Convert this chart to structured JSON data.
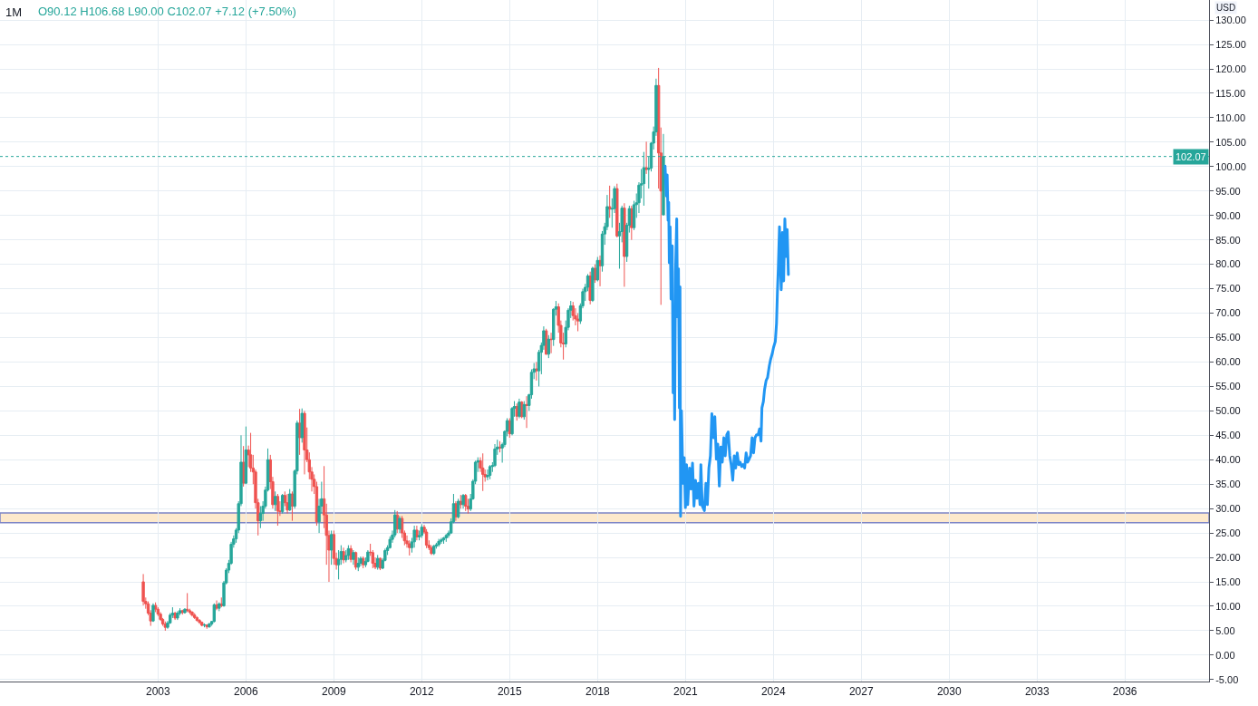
{
  "chart_data": {
    "type": "candlestick",
    "title": "1M",
    "ylabel": "USD",
    "annotations": [
      "O90.12 H106.68 L90.00 C102.07 +7.12 (+7.50%)"
    ],
    "series": [
      {
        "x": [
          "2002-07",
          "2002-08",
          "2002-09",
          "2002-10",
          "2002-11",
          "2002-12",
          "2003-01",
          "2003-02",
          "2003-03",
          "2003-04",
          "2003-05",
          "2003-06",
          "2003-07",
          "2003-08",
          "2003-09",
          "2003-10",
          "2003-11",
          "2003-12",
          "2004-01",
          "2004-02",
          "2004-03",
          "2004-04",
          "2004-05",
          "2004-06",
          "2004-07",
          "2004-08",
          "2004-09",
          "2004-10",
          "2004-11",
          "2004-12",
          "2005-01",
          "2005-02",
          "2005-03",
          "2005-04",
          "2005-05",
          "2005-06",
          "2005-07",
          "2005-08",
          "2005-09",
          "2005-10",
          "2005-11",
          "2005-12",
          "2006-01",
          "2006-02",
          "2006-03",
          "2006-04",
          "2006-05",
          "2006-06",
          "2006-07",
          "2006-08",
          "2006-09",
          "2006-10",
          "2006-11",
          "2006-12",
          "2007-01",
          "2007-02",
          "2007-03",
          "2007-04",
          "2007-05",
          "2007-06",
          "2007-07",
          "2007-08",
          "2007-09",
          "2007-10",
          "2007-11",
          "2007-12",
          "2008-01",
          "2008-02",
          "2008-03",
          "2008-04",
          "2008-05",
          "2008-06",
          "2008-07",
          "2008-08",
          "2008-09",
          "2008-10",
          "2008-11",
          "2008-12",
          "2009-01",
          "2009-02",
          "2009-03",
          "2009-04",
          "2009-05",
          "2009-06",
          "2009-07",
          "2009-08",
          "2009-09",
          "2009-10",
          "2009-11",
          "2009-12",
          "2010-01",
          "2010-02",
          "2010-03",
          "2010-04",
          "2010-05",
          "2010-06",
          "2010-07",
          "2010-08",
          "2010-09",
          "2010-10",
          "2010-11",
          "2010-12",
          "2011-01",
          "2011-02",
          "2011-03",
          "2011-04",
          "2011-05",
          "2011-06",
          "2011-07",
          "2011-08",
          "2011-09",
          "2011-10",
          "2011-11",
          "2011-12",
          "2012-01",
          "2012-02",
          "2012-03",
          "2012-04",
          "2012-05",
          "2012-06",
          "2012-07",
          "2012-08",
          "2012-09",
          "2012-10",
          "2012-11",
          "2012-12",
          "2013-01",
          "2013-02",
          "2013-03",
          "2013-04",
          "2013-05",
          "2013-06",
          "2013-07",
          "2013-08",
          "2013-09",
          "2013-10",
          "2013-11",
          "2013-12",
          "2014-01",
          "2014-02",
          "2014-03",
          "2014-04",
          "2014-05",
          "2014-06",
          "2014-07",
          "2014-08",
          "2014-09",
          "2014-10",
          "2014-11",
          "2014-12",
          "2015-01",
          "2015-02",
          "2015-03",
          "2015-04",
          "2015-05",
          "2015-06",
          "2015-07",
          "2015-08",
          "2015-09",
          "2015-10",
          "2015-11",
          "2015-12",
          "2016-01",
          "2016-02",
          "2016-03",
          "2016-04",
          "2016-05",
          "2016-06",
          "2016-07",
          "2016-08",
          "2016-09",
          "2016-10",
          "2016-11",
          "2016-12",
          "2017-01",
          "2017-02",
          "2017-03",
          "2017-04",
          "2017-05",
          "2017-06",
          "2017-07",
          "2017-08",
          "2017-09",
          "2017-10",
          "2017-11",
          "2017-12",
          "2018-01",
          "2018-02",
          "2018-03",
          "2018-04",
          "2018-05",
          "2018-06",
          "2018-07",
          "2018-08",
          "2018-09",
          "2018-10",
          "2018-11",
          "2018-12",
          "2019-01",
          "2019-02",
          "2019-03",
          "2019-04",
          "2019-05",
          "2019-06",
          "2019-07",
          "2019-08",
          "2019-09",
          "2019-10",
          "2019-11",
          "2019-12",
          "2020-01",
          "2020-02",
          "2020-03",
          "2020-04"
        ],
        "ohlc": [
          [
            15.0,
            16.6,
            10.2,
            11.0
          ],
          [
            11.0,
            11.8,
            9.5,
            10.5
          ],
          [
            10.5,
            11.0,
            8.2,
            8.6
          ],
          [
            8.6,
            9.2,
            6.0,
            7.0
          ],
          [
            7.0,
            10.6,
            6.8,
            10.2
          ],
          [
            10.2,
            10.8,
            8.8,
            9.4
          ],
          [
            9.4,
            9.8,
            8.0,
            8.4
          ],
          [
            8.4,
            8.8,
            7.0,
            7.3
          ],
          [
            7.3,
            7.6,
            6.0,
            6.4
          ],
          [
            6.4,
            6.9,
            5.0,
            5.7
          ],
          [
            5.7,
            7.0,
            5.4,
            6.6
          ],
          [
            6.6,
            8.6,
            6.4,
            8.2
          ],
          [
            8.2,
            9.8,
            7.6,
            8.6
          ],
          [
            8.6,
            8.9,
            7.2,
            7.6
          ],
          [
            7.6,
            9.0,
            7.2,
            8.6
          ],
          [
            8.6,
            9.6,
            8.2,
            9.1
          ],
          [
            9.1,
            9.3,
            8.3,
            8.7
          ],
          [
            8.7,
            9.6,
            8.5,
            9.4
          ],
          [
            9.4,
            12.7,
            8.8,
            9.1
          ],
          [
            9.1,
            9.5,
            8.4,
            8.8
          ],
          [
            8.8,
            9.0,
            7.9,
            8.2
          ],
          [
            8.2,
            8.6,
            7.4,
            7.7
          ],
          [
            7.7,
            7.9,
            6.9,
            7.1
          ],
          [
            7.1,
            7.4,
            6.4,
            6.7
          ],
          [
            6.7,
            6.9,
            5.9,
            6.1
          ],
          [
            6.1,
            6.5,
            5.7,
            6.2
          ],
          [
            6.2,
            6.3,
            5.4,
            5.8
          ],
          [
            5.8,
            6.6,
            5.6,
            6.4
          ],
          [
            6.4,
            7.0,
            6.0,
            6.9
          ],
          [
            6.9,
            10.6,
            6.7,
            10.3
          ],
          [
            10.3,
            11.2,
            9.2,
            9.6
          ],
          [
            9.6,
            10.8,
            9.0,
            10.5
          ],
          [
            10.5,
            11.8,
            9.8,
            10.1
          ],
          [
            10.1,
            15.2,
            9.9,
            14.8
          ],
          [
            14.8,
            17.8,
            14.5,
            17.4
          ],
          [
            17.4,
            19.5,
            16.8,
            18.8
          ],
          [
            18.8,
            23.2,
            18.5,
            22.7
          ],
          [
            22.7,
            24.5,
            22.0,
            23.8
          ],
          [
            23.8,
            26.0,
            23.0,
            25.6
          ],
          [
            25.6,
            31.5,
            25.0,
            31.0
          ],
          [
            31.0,
            45.0,
            30.5,
            39.5
          ],
          [
            39.5,
            42.8,
            34.5,
            35.2
          ],
          [
            35.2,
            46.8,
            35.0,
            42.0
          ],
          [
            42.0,
            42.9,
            38.5,
            41.0
          ],
          [
            41.0,
            45.5,
            37.5,
            38.3
          ],
          [
            38.3,
            41.0,
            35.0,
            37.5
          ],
          [
            37.5,
            38.0,
            30.0,
            31.2
          ],
          [
            31.2,
            32.0,
            24.5,
            27.5
          ],
          [
            27.5,
            30.5,
            26.0,
            29.0
          ],
          [
            29.0,
            31.5,
            27.5,
            30.5
          ],
          [
            30.5,
            34.5,
            30.0,
            33.8
          ],
          [
            33.8,
            42.3,
            33.5,
            40.0
          ],
          [
            40.0,
            41.0,
            34.0,
            35.5
          ],
          [
            35.5,
            36.5,
            30.0,
            30.8
          ],
          [
            30.8,
            33.5,
            29.5,
            32.5
          ],
          [
            32.5,
            33.0,
            26.5,
            29.5
          ],
          [
            29.5,
            31.5,
            28.5,
            29.4
          ],
          [
            29.4,
            33.0,
            29.0,
            32.7
          ],
          [
            32.7,
            33.5,
            30.5,
            31.2
          ],
          [
            31.2,
            33.0,
            29.0,
            29.7
          ],
          [
            29.7,
            34.0,
            29.5,
            33.0
          ],
          [
            33.0,
            33.5,
            27.5,
            30.5
          ],
          [
            30.5,
            38.0,
            30.0,
            37.7
          ],
          [
            37.7,
            48.0,
            37.0,
            47.5
          ],
          [
            47.5,
            50.4,
            41.0,
            44.5
          ],
          [
            44.5,
            50.5,
            43.5,
            49.5
          ],
          [
            49.5,
            50.0,
            37.0,
            42.0
          ],
          [
            42.0,
            46.6,
            39.5,
            40.0
          ],
          [
            40.0,
            41.5,
            36.0,
            37.5
          ],
          [
            37.5,
            38.5,
            33.5,
            36.0
          ],
          [
            36.0,
            37.0,
            33.0,
            34.5
          ],
          [
            34.5,
            35.5,
            26.5,
            27.3
          ],
          [
            27.3,
            32.0,
            25.0,
            30.5
          ],
          [
            30.5,
            35.5,
            29.0,
            32.0
          ],
          [
            32.0,
            38.7,
            26.0,
            28.7
          ],
          [
            28.7,
            31.0,
            18.5,
            24.5
          ],
          [
            24.5,
            25.5,
            15.0,
            21.5
          ],
          [
            21.5,
            25.5,
            18.5,
            24.7
          ],
          [
            24.7,
            25.5,
            18.5,
            19.8
          ],
          [
            19.8,
            21.0,
            17.5,
            18.5
          ],
          [
            18.5,
            21.5,
            15.5,
            19.6
          ],
          [
            19.6,
            22.5,
            18.5,
            21.2
          ],
          [
            21.2,
            22.0,
            18.8,
            19.5
          ],
          [
            19.5,
            21.5,
            19.0,
            20.4
          ],
          [
            20.4,
            22.5,
            19.5,
            21.8
          ],
          [
            21.8,
            22.5,
            19.0,
            19.6
          ],
          [
            19.6,
            21.5,
            18.5,
            21.0
          ],
          [
            21.0,
            21.2,
            17.5,
            18.0
          ],
          [
            18.0,
            20.0,
            17.2,
            18.8
          ],
          [
            18.8,
            20.2,
            18.2,
            19.8
          ],
          [
            19.8,
            20.2,
            17.8,
            18.5
          ],
          [
            18.5,
            20.0,
            18.0,
            19.2
          ],
          [
            19.2,
            21.5,
            19.0,
            21.1
          ],
          [
            21.1,
            22.8,
            20.3,
            21.0
          ],
          [
            21.0,
            21.5,
            17.8,
            18.8
          ],
          [
            18.8,
            20.0,
            17.6,
            18.0
          ],
          [
            18.0,
            20.5,
            17.5,
            19.8
          ],
          [
            19.8,
            20.0,
            17.4,
            17.8
          ],
          [
            17.8,
            19.8,
            17.6,
            19.4
          ],
          [
            19.4,
            21.8,
            19.2,
            21.4
          ],
          [
            21.4,
            22.5,
            20.5,
            22.0
          ],
          [
            22.0,
            24.3,
            21.8,
            23.7
          ],
          [
            23.7,
            25.5,
            23.0,
            24.6
          ],
          [
            24.6,
            29.7,
            24.1,
            28.7
          ],
          [
            28.7,
            29.5,
            25.0,
            25.8
          ],
          [
            25.8,
            28.5,
            25.0,
            28.0
          ],
          [
            28.0,
            28.5,
            24.0,
            25.0
          ],
          [
            25.0,
            25.5,
            22.5,
            23.4
          ],
          [
            23.4,
            24.5,
            22.0,
            22.8
          ],
          [
            22.8,
            23.5,
            20.4,
            22.0
          ],
          [
            22.0,
            24.0,
            21.0,
            23.2
          ],
          [
            23.2,
            26.5,
            22.0,
            25.6
          ],
          [
            25.6,
            26.5,
            23.5,
            24.2
          ],
          [
            24.2,
            25.5,
            23.5,
            24.5
          ],
          [
            24.5,
            26.8,
            24.0,
            26.2
          ],
          [
            26.2,
            26.7,
            24.8,
            25.2
          ],
          [
            25.2,
            25.8,
            21.9,
            22.5
          ],
          [
            22.5,
            23.5,
            21.5,
            22.0
          ],
          [
            22.0,
            22.5,
            20.5,
            20.8
          ],
          [
            20.8,
            22.6,
            20.5,
            22.3
          ],
          [
            22.3,
            23.0,
            21.8,
            22.6
          ],
          [
            22.6,
            23.8,
            22.2,
            23.3
          ],
          [
            23.3,
            24.0,
            22.8,
            23.6
          ],
          [
            23.6,
            24.2,
            22.8,
            24.0
          ],
          [
            24.0,
            24.8,
            23.2,
            24.5
          ],
          [
            24.5,
            25.5,
            24.0,
            25.0
          ],
          [
            25.0,
            28.0,
            24.8,
            27.3
          ],
          [
            27.3,
            33.0,
            27.0,
            31.0
          ],
          [
            31.0,
            31.5,
            27.5,
            28.3
          ],
          [
            28.3,
            32.0,
            28.0,
            31.5
          ],
          [
            31.5,
            32.8,
            30.0,
            30.8
          ],
          [
            30.8,
            33.0,
            30.0,
            32.7
          ],
          [
            32.7,
            33.0,
            29.5,
            30.5
          ],
          [
            30.5,
            32.0,
            29.0,
            29.9
          ],
          [
            29.9,
            33.0,
            29.5,
            32.0
          ],
          [
            32.0,
            36.0,
            31.8,
            35.6
          ],
          [
            35.6,
            39.8,
            35.0,
            39.5
          ],
          [
            39.5,
            40.5,
            37.5,
            39.8
          ],
          [
            39.8,
            40.5,
            37.5,
            38.3
          ],
          [
            38.3,
            41.3,
            33.6,
            37.0
          ],
          [
            37.0,
            38.0,
            35.5,
            36.5
          ],
          [
            36.5,
            38.0,
            35.8,
            36.8
          ],
          [
            36.8,
            38.9,
            36.0,
            38.6
          ],
          [
            38.6,
            39.5,
            37.5,
            38.8
          ],
          [
            38.8,
            43.2,
            38.5,
            42.2
          ],
          [
            42.2,
            44.1,
            41.0,
            42.6
          ],
          [
            42.6,
            43.8,
            41.5,
            42.4
          ],
          [
            42.4,
            43.5,
            39.4,
            43.1
          ],
          [
            43.1,
            46.0,
            42.6,
            45.8
          ],
          [
            45.8,
            48.5,
            44.8,
            48.0
          ],
          [
            48.0,
            48.5,
            44.5,
            45.3
          ],
          [
            45.3,
            50.8,
            45.0,
            50.5
          ],
          [
            50.5,
            52.0,
            48.8,
            50.9
          ],
          [
            50.9,
            51.5,
            48.0,
            48.9
          ],
          [
            48.9,
            52.5,
            48.5,
            51.8
          ],
          [
            51.8,
            52.0,
            48.5,
            48.8
          ],
          [
            48.8,
            52.0,
            48.2,
            51.3
          ],
          [
            51.3,
            53.0,
            46.5,
            51.1
          ],
          [
            51.1,
            53.5,
            50.0,
            53.3
          ],
          [
            53.3,
            58.5,
            52.5,
            57.9
          ],
          [
            57.9,
            59.8,
            56.5,
            58.6
          ],
          [
            58.6,
            60.0,
            56.2,
            58.2
          ],
          [
            58.2,
            62.5,
            55.0,
            62.0
          ],
          [
            62.0,
            64.0,
            57.5,
            63.4
          ],
          [
            63.4,
            67.3,
            62.5,
            66.4
          ],
          [
            66.4,
            66.8,
            61.5,
            61.6
          ],
          [
            61.6,
            65.5,
            60.8,
            64.7
          ],
          [
            64.7,
            66.0,
            61.8,
            64.6
          ],
          [
            64.6,
            71.0,
            63.3,
            70.8
          ],
          [
            70.8,
            72.5,
            69.5,
            71.3
          ],
          [
            71.3,
            72.0,
            66.0,
            67.5
          ],
          [
            67.5,
            68.5,
            63.0,
            63.9
          ],
          [
            63.9,
            66.0,
            60.5,
            63.7
          ],
          [
            63.7,
            68.5,
            63.0,
            67.1
          ],
          [
            67.1,
            71.0,
            66.5,
            70.6
          ],
          [
            70.6,
            72.5,
            69.0,
            71.5
          ],
          [
            71.5,
            72.3,
            68.5,
            69.5
          ],
          [
            69.5,
            71.0,
            67.5,
            68.8
          ],
          [
            68.8,
            70.0,
            66.3,
            68.4
          ],
          [
            68.4,
            72.0,
            67.8,
            71.5
          ],
          [
            71.5,
            75.0,
            71.0,
            74.4
          ],
          [
            74.4,
            76.0,
            72.5,
            75.3
          ],
          [
            75.3,
            78.0,
            74.5,
            77.6
          ],
          [
            77.6,
            78.5,
            71.8,
            72.6
          ],
          [
            72.6,
            79.5,
            72.3,
            79.2
          ],
          [
            79.2,
            80.0,
            76.2,
            76.8
          ],
          [
            76.8,
            81.5,
            76.5,
            80.8
          ],
          [
            80.8,
            81.8,
            75.5,
            79.7
          ],
          [
            79.7,
            86.8,
            78.5,
            86.2
          ],
          [
            86.2,
            88.5,
            84.0,
            87.7
          ],
          [
            87.7,
            94.2,
            87.0,
            91.8
          ],
          [
            91.8,
            96.1,
            89.5,
            91.3
          ],
          [
            91.3,
            93.5,
            87.5,
            91.4
          ],
          [
            91.4,
            96.0,
            90.5,
            95.5
          ],
          [
            95.5,
            96.5,
            85.5,
            85.8
          ],
          [
            85.8,
            88.5,
            79.1,
            86.7
          ],
          [
            86.7,
            92.0,
            84.5,
            91.5
          ],
          [
            91.5,
            92.5,
            75.4,
            81.6
          ],
          [
            81.6,
            88.5,
            80.5,
            88.0
          ],
          [
            88.0,
            92.0,
            86.5,
            91.4
          ],
          [
            91.4,
            92.0,
            85.0,
            87.5
          ],
          [
            87.5,
            93.0,
            87.0,
            92.2
          ],
          [
            92.2,
            94.5,
            89.5,
            92.6
          ],
          [
            92.6,
            96.8,
            90.5,
            96.2
          ],
          [
            96.2,
            99.5,
            93.5,
            96.5
          ],
          [
            96.5,
            103.0,
            92.0,
            99.8
          ],
          [
            99.8,
            105.1,
            98.5,
            99.4
          ],
          [
            99.4,
            102.0,
            95.5,
            99.7
          ],
          [
            99.7,
            105.0,
            99.0,
            104.8
          ],
          [
            104.8,
            108.2,
            103.5,
            107.1
          ],
          [
            107.1,
            118.0,
            106.3,
            116.6
          ],
          [
            116.6,
            120.2,
            95.5,
            102.8
          ],
          [
            102.8,
            108.0,
            71.7,
            95.0
          ],
          [
            90.12,
            106.68,
            90.0,
            102.07
          ]
        ],
        "colors": [
          "#ef5350",
          "#ef5350",
          "#ef5350",
          "#ef5350",
          "#26a69a",
          "#ef5350",
          "#ef5350",
          "#ef5350",
          "#ef5350",
          "#ef5350",
          "#26a69a",
          "#26a69a",
          "#26a69a",
          "#ef5350",
          "#26a69a",
          "#26a69a",
          "#ef5350",
          "#26a69a",
          "#ef5350",
          "#ef5350",
          "#ef5350",
          "#ef5350",
          "#ef5350",
          "#ef5350",
          "#ef5350",
          "#26a69a",
          "#ef5350",
          "#26a69a",
          "#26a69a",
          "#26a69a",
          "#ef5350",
          "#26a69a",
          "#ef5350",
          "#26a69a",
          "#26a69a",
          "#26a69a",
          "#26a69a",
          "#26a69a",
          "#26a69a",
          "#26a69a",
          "#26a69a",
          "#ef5350",
          "#26a69a",
          "#ef5350",
          "#ef5350",
          "#ef5350",
          "#ef5350",
          "#ef5350",
          "#26a69a",
          "#26a69a",
          "#26a69a",
          "#26a69a",
          "#ef5350",
          "#ef5350",
          "#26a69a",
          "#ef5350",
          "#ef5350",
          "#26a69a",
          "#ef5350",
          "#ef5350",
          "#26a69a",
          "#ef5350",
          "#26a69a",
          "#26a69a",
          "#ef5350",
          "#26a69a",
          "#ef5350",
          "#ef5350",
          "#ef5350",
          "#ef5350",
          "#ef5350",
          "#ef5350",
          "#26a69a",
          "#26a69a",
          "#ef5350",
          "#ef5350",
          "#ef5350",
          "#26a69a",
          "#ef5350",
          "#ef5350",
          "#26a69a",
          "#26a69a",
          "#ef5350",
          "#26a69a",
          "#26a69a",
          "#ef5350",
          "#26a69a",
          "#ef5350",
          "#26a69a",
          "#26a69a",
          "#ef5350",
          "#26a69a",
          "#26a69a",
          "#ef5350",
          "#ef5350",
          "#ef5350",
          "#26a69a",
          "#ef5350",
          "#26a69a",
          "#26a69a",
          "#26a69a",
          "#26a69a",
          "#26a69a",
          "#26a69a",
          "#ef5350",
          "#26a69a",
          "#ef5350",
          "#ef5350",
          "#ef5350",
          "#ef5350",
          "#26a69a",
          "#26a69a",
          "#ef5350",
          "#26a69a",
          "#26a69a",
          "#ef5350",
          "#ef5350",
          "#ef5350",
          "#ef5350",
          "#26a69a",
          "#26a69a",
          "#26a69a",
          "#26a69a",
          "#26a69a",
          "#26a69a",
          "#26a69a",
          "#26a69a",
          "#26a69a",
          "#ef5350",
          "#26a69a",
          "#ef5350",
          "#26a69a",
          "#ef5350",
          "#ef5350",
          "#26a69a",
          "#26a69a",
          "#26a69a",
          "#26a69a",
          "#ef5350",
          "#ef5350",
          "#ef5350",
          "#26a69a",
          "#26a69a",
          "#26a69a",
          "#26a69a",
          "#26a69a",
          "#ef5350",
          "#26a69a",
          "#26a69a",
          "#26a69a",
          "#ef5350",
          "#26a69a",
          "#26a69a",
          "#ef5350",
          "#26a69a",
          "#ef5350",
          "#26a69a",
          "#ef5350",
          "#26a69a",
          "#26a69a",
          "#26a69a",
          "#ef5350",
          "#26a69a",
          "#26a69a",
          "#26a69a",
          "#ef5350",
          "#26a69a",
          "#ef5350",
          "#26a69a",
          "#26a69a",
          "#ef5350",
          "#ef5350",
          "#ef5350",
          "#26a69a",
          "#26a69a",
          "#26a69a",
          "#ef5350",
          "#ef5350",
          "#ef5350",
          "#26a69a",
          "#26a69a",
          "#26a69a",
          "#26a69a",
          "#ef5350",
          "#26a69a",
          "#ef5350",
          "#26a69a",
          "#ef5350",
          "#26a69a",
          "#26a69a",
          "#26a69a",
          "#ef5350",
          "#26a69a",
          "#26a69a",
          "#ef5350",
          "#26a69a",
          "#26a69a",
          "#ef5350",
          "#26a69a",
          "#26a69a",
          "#ef5350",
          "#26a69a",
          "#26a69a",
          "#26a69a",
          "#26a69a",
          "#26a69a",
          "#ef5350",
          "#26a69a",
          "#26a69a",
          "#26a69a",
          "#26a69a",
          "#ef5350",
          "#ef5350",
          "#26a69a"
        ]
      },
      {
        "type": "line",
        "color": "#2196f3",
        "x": [
          "2020-04-22",
          "2020-05-07",
          "2020-05-18",
          "2020-05-29",
          "2020-06-06",
          "2020-06-13",
          "2020-06-24",
          "2020-07-05",
          "2020-07-20",
          "2020-07-31",
          "2020-08-12",
          "2020-08-19",
          "2020-08-30",
          "2020-09-14",
          "2020-09-25",
          "2020-10-06",
          "2020-10-17",
          "2020-10-25",
          "2020-11-01",
          "2020-11-12",
          "2020-12-01",
          "2020-12-16",
          "2020-12-31",
          "2021-01-14",
          "2021-01-29",
          "2021-02-21",
          "2021-03-11",
          "2021-03-30",
          "2021-04-17",
          "2021-05-06",
          "2021-05-24",
          "2021-06-12",
          "2021-07-01",
          "2021-07-12",
          "2021-07-30",
          "2021-08-25",
          "2021-09-13",
          "2021-10-01",
          "2021-10-20",
          "2021-11-08",
          "2021-11-26",
          "2021-12-15",
          "2022-01-02",
          "2022-01-21",
          "2022-02-08",
          "2022-02-27",
          "2022-03-17",
          "2022-04-05",
          "2022-04-24",
          "2022-05-12",
          "2022-05-31",
          "2022-06-18",
          "2022-07-07",
          "2022-07-25",
          "2022-08-13",
          "2022-09-01",
          "2022-09-19",
          "2022-10-08",
          "2022-10-26",
          "2022-11-14",
          "2022-12-02",
          "2022-12-21",
          "2023-01-09",
          "2023-01-27",
          "2023-02-15",
          "2023-03-05",
          "2023-03-24",
          "2023-04-11",
          "2023-04-30",
          "2023-05-18",
          "2023-06-06",
          "2023-06-25",
          "2023-07-13",
          "2023-08-01",
          "2023-08-12",
          "2023-08-30",
          "2023-09-14",
          "2023-10-03",
          "2023-10-21",
          "2023-11-13",
          "2023-11-28",
          "2023-12-20",
          "2024-01-04",
          "2024-01-26",
          "2024-02-10",
          "2024-02-21",
          "2024-03-03",
          "2024-03-18",
          "2024-03-29",
          "2024-04-09",
          "2024-04-24",
          "2024-05-09",
          "2024-05-24",
          "2024-06-07",
          "2024-06-22",
          "2024-07-07"
        ],
        "values": [
          100.1,
          94.0,
          98.3,
          89.0,
          92.7,
          80.3,
          87.7,
          72.9,
          83.8,
          53.7,
          69.2,
          48.2,
          78.5,
          89.3,
          69.2,
          79.1,
          50.6,
          75.4,
          28.4,
          50.0,
          35.2,
          40.4,
          30.2,
          39.0,
          30.8,
          38.3,
          34.0,
          39.3,
          30.5,
          35.8,
          32.1,
          35.2,
          30.8,
          39.0,
          30.5,
          29.6,
          35.2,
          30.8,
          38.3,
          40.8,
          49.4,
          44.5,
          48.8,
          40.1,
          43.2,
          34.6,
          42.6,
          39.5,
          44.5,
          40.8,
          45.1,
          45.7,
          40.8,
          39.0,
          35.8,
          40.8,
          38.3,
          41.4,
          39.0,
          39.5,
          38.6,
          39.0,
          38.3,
          41.4,
          39.5,
          40.1,
          40.8,
          44.5,
          41.4,
          44.5,
          45.1,
          45.1,
          46.3,
          43.8,
          50.6,
          51.9,
          54.4,
          56.2,
          56.8,
          59.3,
          60.5,
          61.8,
          63.0,
          64.2,
          67.9,
          74.2,
          79.1,
          87.7,
          80.3,
          74.8,
          86.5,
          76.6,
          89.3,
          81.6,
          87.1,
          77.9
        ]
      }
    ],
    "xlim": [
      "1997-08-10",
      "2038-11-15"
    ],
    "xticks": [
      "2003",
      "2006",
      "2009",
      "2012",
      "2015",
      "2018",
      "2021",
      "2024",
      "2027",
      "2030",
      "2033",
      "2036"
    ],
    "ylim": [
      -5.4,
      134.1
    ],
    "yticks": [
      {
        "value": -5,
        "label": "-5.00"
      },
      {
        "value": 0,
        "label": "0.00"
      },
      {
        "value": 5,
        "label": "5.00"
      },
      {
        "value": 10,
        "label": "10.00"
      },
      {
        "value": 15,
        "label": "15.00"
      },
      {
        "value": 20,
        "label": "20.00"
      },
      {
        "value": 25,
        "label": "25.00"
      },
      {
        "value": 30,
        "label": "30.00"
      },
      {
        "value": 35,
        "label": "35.00"
      },
      {
        "value": 40,
        "label": "40.00"
      },
      {
        "value": 45,
        "label": "45.00"
      },
      {
        "value": 50,
        "label": "50.00"
      },
      {
        "value": 55,
        "label": "55.00"
      },
      {
        "value": 60,
        "label": "60.00"
      },
      {
        "value": 65,
        "label": "65.00"
      },
      {
        "value": 70,
        "label": "70.00"
      },
      {
        "value": 75,
        "label": "75.00"
      },
      {
        "value": 80,
        "label": "80.00"
      },
      {
        "value": 85,
        "label": "85.00"
      },
      {
        "value": 90,
        "label": "90.00"
      },
      {
        "value": 95,
        "label": "95.00"
      },
      {
        "value": 100,
        "label": "100.00"
      },
      {
        "value": 105,
        "label": "105.00"
      },
      {
        "value": 110,
        "label": "110.00"
      },
      {
        "value": 115,
        "label": "115.00"
      },
      {
        "value": 120,
        "label": "120.00"
      },
      {
        "value": 125,
        "label": "125.00"
      },
      {
        "value": 130,
        "label": "130.00"
      }
    ],
    "ref_lines": [
      {
        "axis": "y",
        "value": 102.07,
        "label": "102.07",
        "color": "#26a69a",
        "line_style": "dotted"
      }
    ],
    "bands": [
      {
        "axis": "y",
        "from": 27.1,
        "to": 29.1,
        "color": "#fde9cc"
      }
    ],
    "grid": true,
    "line_style": "solid"
  }
}
